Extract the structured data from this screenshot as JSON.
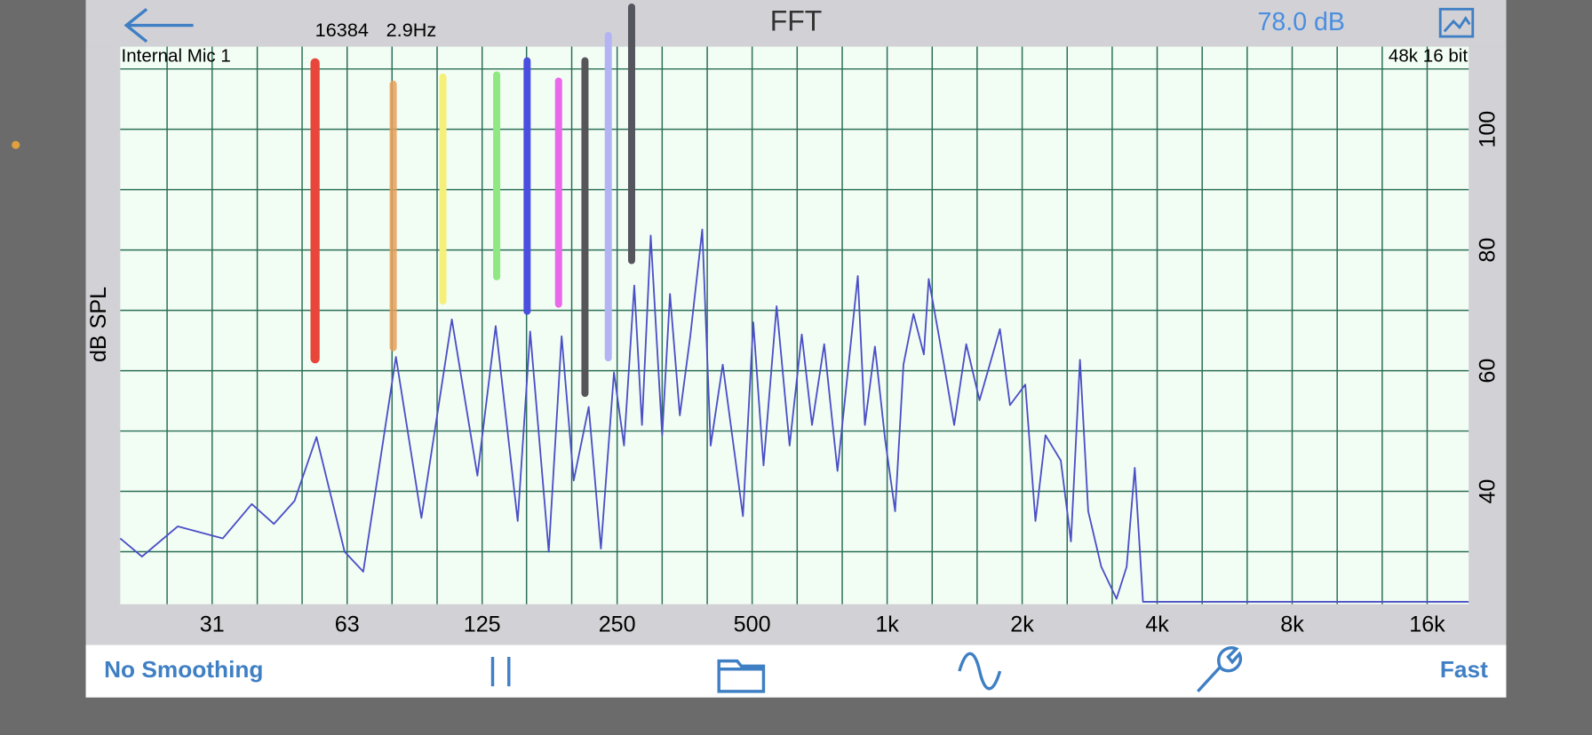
{
  "header": {
    "fft_size": "16384",
    "resolution": "2.9Hz",
    "title": "FFT",
    "level": "78.0 dB"
  },
  "toolbar": {
    "smoothing": "No Smoothing",
    "speed": "Fast"
  },
  "chart_data": {
    "type": "line",
    "input_label": "Internal Mic 1",
    "format_label": "48k 16 bit",
    "y_label": "dB SPL",
    "x_scale": "log",
    "grid": true,
    "xlim": [
      19.5,
      19800
    ],
    "ylim": [
      21.3,
      113.7
    ],
    "xticks": [
      {
        "value": 31.25,
        "label": "31"
      },
      {
        "value": 62.5,
        "label": "63"
      },
      125,
      250,
      500,
      {
        "value": 1000,
        "label": "1k"
      },
      {
        "value": 2000,
        "label": "2k"
      },
      {
        "value": 4000,
        "label": "4k"
      },
      {
        "value": 8000,
        "label": "8k"
      },
      {
        "value": 16000,
        "label": "16k"
      }
    ],
    "minor_xticks": [
      24.8,
      39.4,
      49.6,
      78.7,
      99.2,
      157,
      198,
      315,
      397,
      630,
      794,
      1260,
      1587,
      2520,
      3175,
      5040,
      6350,
      10080,
      12700
    ],
    "yticks": [
      40,
      60,
      80,
      100
    ],
    "minor_yticks": [
      30,
      50,
      70,
      90,
      110
    ],
    "x": [
      19.5,
      21.8,
      26.2,
      33.0,
      38.3,
      42.9,
      47.7,
      53.4,
      61.7,
      67.9,
      80.3,
      91.5,
      107,
      122,
      134,
      150,
      160,
      176,
      188,
      200,
      216,
      230,
      246,
      259,
      273,
      284,
      297,
      315,
      328,
      345,
      364,
      387,
      404,
      430,
      477,
      503,
      530,
      567,
      606,
      645,
      680,
      724,
      775,
      860,
      892,
      939,
      990,
      1042,
      1087,
      1145,
      1207,
      1238,
      1339,
      1411,
      1501,
      1607,
      1784,
      1879,
      2032,
      2141,
      2255,
      2439,
      2569,
      2692,
      2807,
      3003,
      3247,
      3420,
      3566,
      3719,
      19800
    ],
    "series": [
      {
        "color": "#4b4fc6",
        "values": [
          32.2,
          29.2,
          34.2,
          32.2,
          37.9,
          34.6,
          38.4,
          49.0,
          30.0,
          26.7,
          62.3,
          35.6,
          68.5,
          42.6,
          67.4,
          35.1,
          66.5,
          30.0,
          65.7,
          41.8,
          54.0,
          30.5,
          59.7,
          47.6,
          74.1,
          51.0,
          82.4,
          49.3,
          72.7,
          52.6,
          65.7,
          83.4,
          47.6,
          61.0,
          35.9,
          68.0,
          44.3,
          70.7,
          47.6,
          66.0,
          51.0,
          64.4,
          43.4,
          75.7,
          51.0,
          64.0,
          48.5,
          36.7,
          61.0,
          69.4,
          62.7,
          75.2,
          61.0,
          51.0,
          64.4,
          55.1,
          66.9,
          54.3,
          57.7,
          35.1,
          49.3,
          45.1,
          31.7,
          61.8,
          36.7,
          27.5,
          22.2,
          27.5,
          43.9,
          21.7,
          21.7
        ]
      }
    ]
  }
}
